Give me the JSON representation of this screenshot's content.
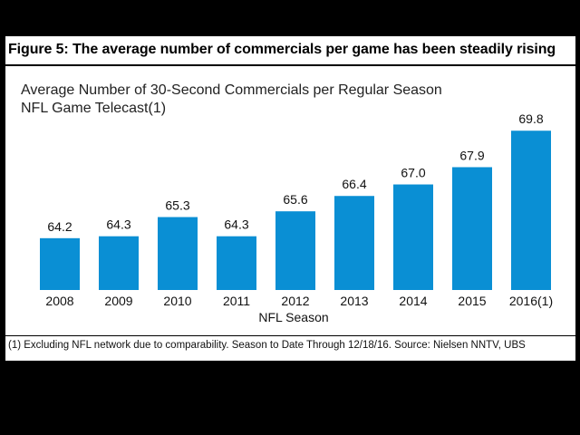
{
  "figure": {
    "title": "Figure 5: The average number of commercials per game has been steadily rising",
    "footnote": "(1) Excluding NFL network due to comparability. Season to Date Through 12/18/16.  Source:  Nielsen NNTV, UBS"
  },
  "chart_data": {
    "type": "bar",
    "title_lines": [
      "Average Number of 30-Second Commercials per Regular Season",
      "NFL Game Telecast(1)"
    ],
    "xlabel": "NFL Season",
    "ylabel": "",
    "categories": [
      "2008",
      "2009",
      "2010",
      "2011",
      "2012",
      "2013",
      "2014",
      "2015",
      "2016(1)"
    ],
    "values": [
      64.2,
      64.3,
      65.3,
      64.3,
      65.6,
      66.4,
      67.0,
      67.9,
      69.8
    ],
    "value_labels": [
      "64.2",
      "64.3",
      "65.3",
      "64.3",
      "65.6",
      "66.4",
      "67.0",
      "67.9",
      "69.8"
    ],
    "ylim": [
      61.5,
      70
    ],
    "color": "#0a8fd4",
    "grid": false
  }
}
